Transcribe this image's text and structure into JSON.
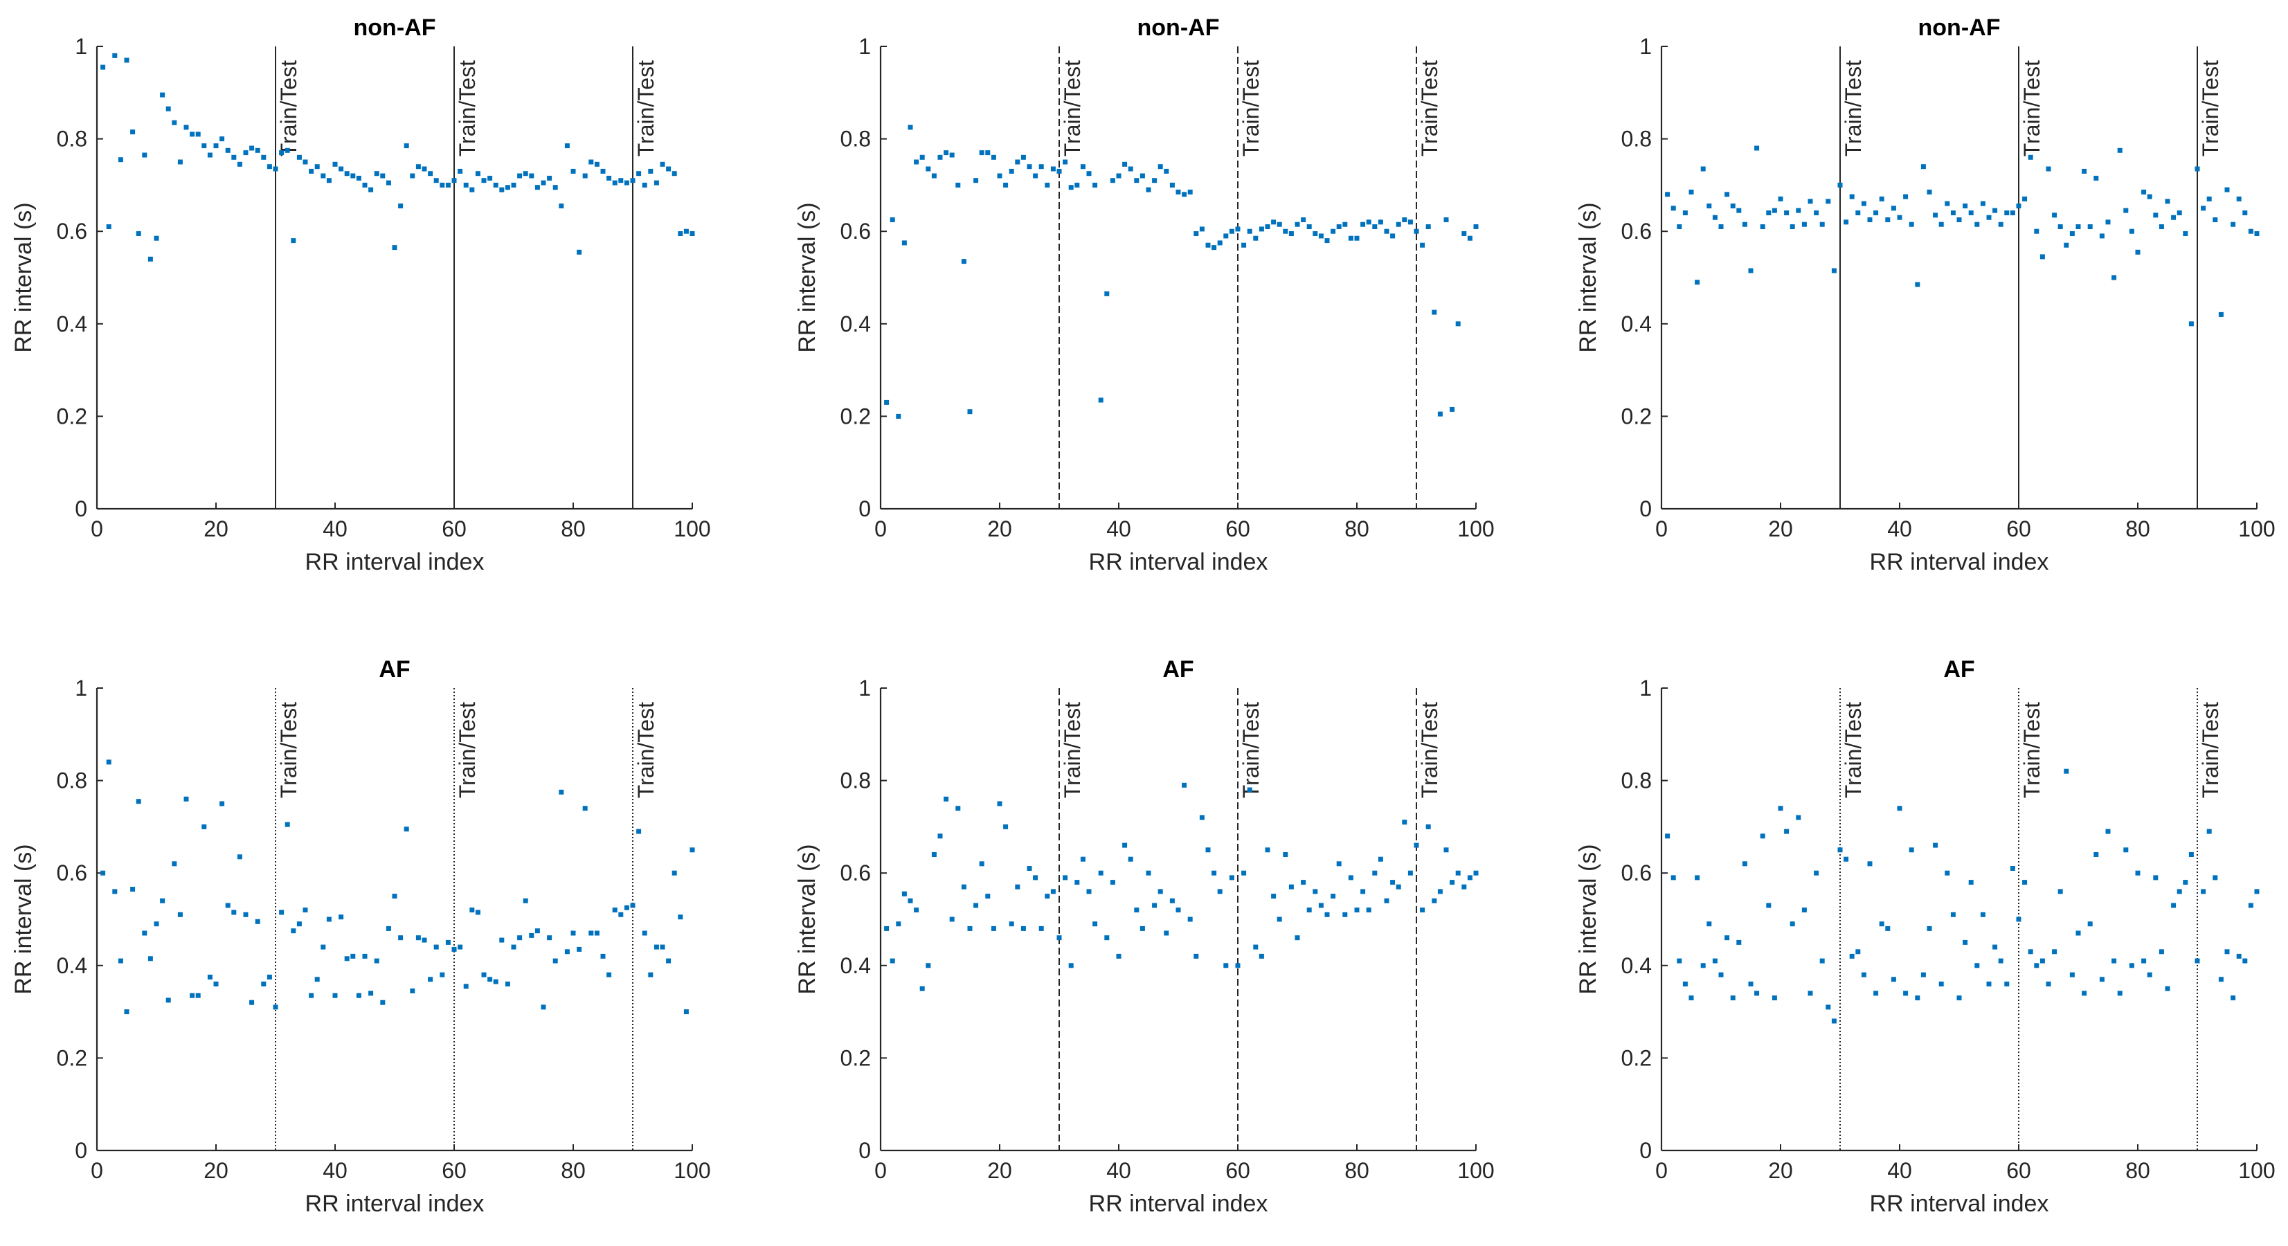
{
  "figure": {
    "series_color": "#0072BD"
  },
  "chart_data": [
    {
      "type": "scatter",
      "title": "non-AF",
      "xlabel": "RR interval index",
      "ylabel": "RR interval (s)",
      "xlim": [
        0,
        100
      ],
      "ylim": [
        0,
        1
      ],
      "xticks": [
        "0",
        "20",
        "40",
        "60",
        "80",
        "100"
      ],
      "yticks": [
        "0",
        "0.2",
        "0.4",
        "0.6",
        "0.8",
        "1"
      ],
      "split_label": "Train/Test",
      "splits": [
        30,
        60,
        90
      ],
      "split_style": "solid",
      "y": [
        0.955,
        0.61,
        0.98,
        0.755,
        0.97,
        0.815,
        0.595,
        0.765,
        0.54,
        0.585,
        0.895,
        0.865,
        0.835,
        0.75,
        0.825,
        0.81,
        0.81,
        0.785,
        0.765,
        0.785,
        0.8,
        0.775,
        0.76,
        0.745,
        0.77,
        0.78,
        0.775,
        0.76,
        0.74,
        0.735,
        0.77,
        0.775,
        0.58,
        0.76,
        0.75,
        0.73,
        0.74,
        0.72,
        0.71,
        0.745,
        0.735,
        0.725,
        0.72,
        0.715,
        0.7,
        0.69,
        0.725,
        0.72,
        0.705,
        0.565,
        0.655,
        0.785,
        0.72,
        0.74,
        0.735,
        0.725,
        0.71,
        0.7,
        0.7,
        0.71,
        0.73,
        0.7,
        0.69,
        0.725,
        0.71,
        0.715,
        0.7,
        0.69,
        0.695,
        0.7,
        0.72,
        0.725,
        0.72,
        0.695,
        0.705,
        0.715,
        0.695,
        0.655,
        0.785,
        0.73,
        0.555,
        0.72,
        0.75,
        0.745,
        0.73,
        0.715,
        0.705,
        0.71,
        0.705,
        0.71,
        0.725,
        0.7,
        0.73,
        0.705,
        0.745,
        0.735,
        0.725,
        0.595,
        0.6,
        0.595
      ]
    },
    {
      "type": "scatter",
      "title": "non-AF",
      "xlabel": "RR interval index",
      "ylabel": "RR interval (s)",
      "xlim": [
        0,
        100
      ],
      "ylim": [
        0,
        1
      ],
      "xticks": [
        "0",
        "20",
        "40",
        "60",
        "80",
        "100"
      ],
      "yticks": [
        "0",
        "0.2",
        "0.4",
        "0.6",
        "0.8",
        "1"
      ],
      "split_label": "Train/Test",
      "splits": [
        30,
        60,
        90
      ],
      "split_style": "dashed",
      "y": [
        0.23,
        0.625,
        0.2,
        0.575,
        0.825,
        0.75,
        0.76,
        0.735,
        0.72,
        0.76,
        0.77,
        0.765,
        0.7,
        0.535,
        0.21,
        0.71,
        0.77,
        0.77,
        0.76,
        0.72,
        0.7,
        0.73,
        0.75,
        0.76,
        0.74,
        0.72,
        0.74,
        0.7,
        0.735,
        0.73,
        0.75,
        0.695,
        0.7,
        0.74,
        0.725,
        0.7,
        0.235,
        0.465,
        0.71,
        0.72,
        0.745,
        0.735,
        0.71,
        0.72,
        0.69,
        0.71,
        0.74,
        0.73,
        0.7,
        0.685,
        0.68,
        0.685,
        0.595,
        0.605,
        0.57,
        0.565,
        0.575,
        0.59,
        0.6,
        0.605,
        0.57,
        0.6,
        0.585,
        0.605,
        0.61,
        0.62,
        0.615,
        0.6,
        0.595,
        0.615,
        0.625,
        0.61,
        0.595,
        0.59,
        0.58,
        0.6,
        0.61,
        0.615,
        0.585,
        0.585,
        0.615,
        0.62,
        0.61,
        0.62,
        0.6,
        0.59,
        0.615,
        0.625,
        0.62,
        0.6,
        0.57,
        0.61,
        0.425,
        0.205,
        0.625,
        0.215,
        0.4,
        0.595,
        0.585,
        0.61
      ]
    },
    {
      "type": "scatter",
      "title": "non-AF",
      "xlabel": "RR interval index",
      "ylabel": "RR interval (s)",
      "xlim": [
        0,
        100
      ],
      "ylim": [
        0,
        1
      ],
      "xticks": [
        "0",
        "20",
        "40",
        "60",
        "80",
        "100"
      ],
      "yticks": [
        "0",
        "0.2",
        "0.4",
        "0.6",
        "0.8",
        "1"
      ],
      "split_label": "Train/Test",
      "splits": [
        30,
        60,
        90
      ],
      "split_style": "solid",
      "y": [
        0.68,
        0.65,
        0.61,
        0.64,
        0.685,
        0.49,
        0.735,
        0.655,
        0.63,
        0.61,
        0.68,
        0.655,
        0.645,
        0.615,
        0.515,
        0.78,
        0.61,
        0.64,
        0.645,
        0.67,
        0.64,
        0.61,
        0.645,
        0.615,
        0.665,
        0.64,
        0.615,
        0.665,
        0.515,
        0.7,
        0.62,
        0.675,
        0.64,
        0.66,
        0.625,
        0.64,
        0.67,
        0.625,
        0.65,
        0.63,
        0.675,
        0.615,
        0.485,
        0.74,
        0.685,
        0.635,
        0.615,
        0.66,
        0.64,
        0.625,
        0.655,
        0.64,
        0.615,
        0.66,
        0.63,
        0.645,
        0.615,
        0.64,
        0.64,
        0.655,
        0.67,
        0.76,
        0.6,
        0.545,
        0.735,
        0.635,
        0.61,
        0.57,
        0.595,
        0.61,
        0.73,
        0.61,
        0.715,
        0.59,
        0.62,
        0.5,
        0.775,
        0.645,
        0.6,
        0.555,
        0.685,
        0.675,
        0.635,
        0.61,
        0.665,
        0.63,
        0.64,
        0.595,
        0.4,
        0.735,
        0.65,
        0.67,
        0.625,
        0.42,
        0.69,
        0.615,
        0.67,
        0.64,
        0.6,
        0.595
      ]
    },
    {
      "type": "scatter",
      "title": "AF",
      "xlabel": "RR interval index",
      "ylabel": "RR interval (s)",
      "xlim": [
        0,
        100
      ],
      "ylim": [
        0,
        1
      ],
      "xticks": [
        "0",
        "20",
        "40",
        "60",
        "80",
        "100"
      ],
      "yticks": [
        "0",
        "0.2",
        "0.4",
        "0.6",
        "0.8",
        "1"
      ],
      "split_label": "Train/Test",
      "splits": [
        30,
        60,
        90
      ],
      "split_style": "dotted",
      "y": [
        0.6,
        0.84,
        0.56,
        0.41,
        0.3,
        0.565,
        0.755,
        0.47,
        0.415,
        0.49,
        0.54,
        0.325,
        0.62,
        0.51,
        0.76,
        0.335,
        0.335,
        0.7,
        0.375,
        0.36,
        0.75,
        0.53,
        0.515,
        0.635,
        0.51,
        0.32,
        0.495,
        0.36,
        0.375,
        0.31,
        0.515,
        0.705,
        0.475,
        0.49,
        0.52,
        0.335,
        0.37,
        0.44,
        0.5,
        0.335,
        0.505,
        0.415,
        0.42,
        0.335,
        0.42,
        0.34,
        0.41,
        0.32,
        0.48,
        0.55,
        0.46,
        0.695,
        0.345,
        0.46,
        0.455,
        0.37,
        0.44,
        0.38,
        0.45,
        0.435,
        0.44,
        0.355,
        0.52,
        0.515,
        0.38,
        0.37,
        0.365,
        0.455,
        0.36,
        0.44,
        0.46,
        0.54,
        0.465,
        0.475,
        0.31,
        0.46,
        0.41,
        0.775,
        0.43,
        0.47,
        0.435,
        0.74,
        0.47,
        0.47,
        0.42,
        0.38,
        0.52,
        0.51,
        0.525,
        0.53,
        0.69,
        0.47,
        0.38,
        0.44,
        0.44,
        0.41,
        0.6,
        0.505,
        0.3,
        0.65
      ]
    },
    {
      "type": "scatter",
      "title": "AF",
      "xlabel": "RR interval index",
      "ylabel": "RR interval (s)",
      "xlim": [
        0,
        100
      ],
      "ylim": [
        0,
        1
      ],
      "xticks": [
        "0",
        "20",
        "40",
        "60",
        "80",
        "100"
      ],
      "yticks": [
        "0",
        "0.2",
        "0.4",
        "0.6",
        "0.8",
        "1"
      ],
      "split_label": "Train/Test",
      "splits": [
        30,
        60,
        90
      ],
      "split_style": "dashed",
      "y": [
        0.48,
        0.41,
        0.49,
        0.555,
        0.54,
        0.52,
        0.35,
        0.4,
        0.64,
        0.68,
        0.76,
        0.5,
        0.74,
        0.57,
        0.48,
        0.53,
        0.62,
        0.55,
        0.48,
        0.75,
        0.7,
        0.49,
        0.57,
        0.48,
        0.61,
        0.59,
        0.48,
        0.55,
        0.56,
        0.46,
        0.59,
        0.4,
        0.58,
        0.63,
        0.56,
        0.49,
        0.6,
        0.46,
        0.58,
        0.42,
        0.66,
        0.63,
        0.52,
        0.48,
        0.6,
        0.53,
        0.56,
        0.47,
        0.54,
        0.52,
        0.79,
        0.5,
        0.42,
        0.72,
        0.65,
        0.6,
        0.56,
        0.4,
        0.59,
        0.4,
        0.6,
        0.78,
        0.44,
        0.42,
        0.65,
        0.55,
        0.5,
        0.64,
        0.57,
        0.46,
        0.58,
        0.52,
        0.56,
        0.53,
        0.51,
        0.55,
        0.62,
        0.51,
        0.59,
        0.52,
        0.56,
        0.52,
        0.6,
        0.63,
        0.54,
        0.58,
        0.57,
        0.71,
        0.6,
        0.66,
        0.52,
        0.7,
        0.54,
        0.56,
        0.65,
        0.58,
        0.6,
        0.57,
        0.59,
        0.6
      ]
    },
    {
      "type": "scatter",
      "title": "AF",
      "xlabel": "RR interval index",
      "ylabel": "RR interval (s)",
      "xlim": [
        0,
        100
      ],
      "ylim": [
        0,
        1
      ],
      "xticks": [
        "0",
        "20",
        "40",
        "60",
        "80",
        "100"
      ],
      "yticks": [
        "0",
        "0.2",
        "0.4",
        "0.6",
        "0.8",
        "1"
      ],
      "split_label": "Train/Test",
      "splits": [
        30,
        60,
        90
      ],
      "split_style": "dotted",
      "y": [
        0.68,
        0.59,
        0.41,
        0.36,
        0.33,
        0.59,
        0.4,
        0.49,
        0.41,
        0.38,
        0.46,
        0.33,
        0.45,
        0.62,
        0.36,
        0.34,
        0.68,
        0.53,
        0.33,
        0.74,
        0.69,
        0.49,
        0.72,
        0.52,
        0.34,
        0.6,
        0.41,
        0.31,
        0.28,
        0.65,
        0.63,
        0.42,
        0.43,
        0.38,
        0.62,
        0.34,
        0.49,
        0.48,
        0.37,
        0.74,
        0.34,
        0.65,
        0.33,
        0.38,
        0.48,
        0.66,
        0.36,
        0.6,
        0.51,
        0.33,
        0.45,
        0.58,
        0.4,
        0.51,
        0.36,
        0.44,
        0.41,
        0.36,
        0.61,
        0.5,
        0.58,
        0.43,
        0.4,
        0.41,
        0.36,
        0.43,
        0.56,
        0.82,
        0.38,
        0.47,
        0.34,
        0.49,
        0.64,
        0.37,
        0.69,
        0.41,
        0.34,
        0.65,
        0.4,
        0.6,
        0.41,
        0.38,
        0.59,
        0.43,
        0.35,
        0.53,
        0.56,
        0.58,
        0.64,
        0.41,
        0.56,
        0.69,
        0.59,
        0.37,
        0.43,
        0.33,
        0.42,
        0.41,
        0.53,
        0.56
      ]
    }
  ]
}
